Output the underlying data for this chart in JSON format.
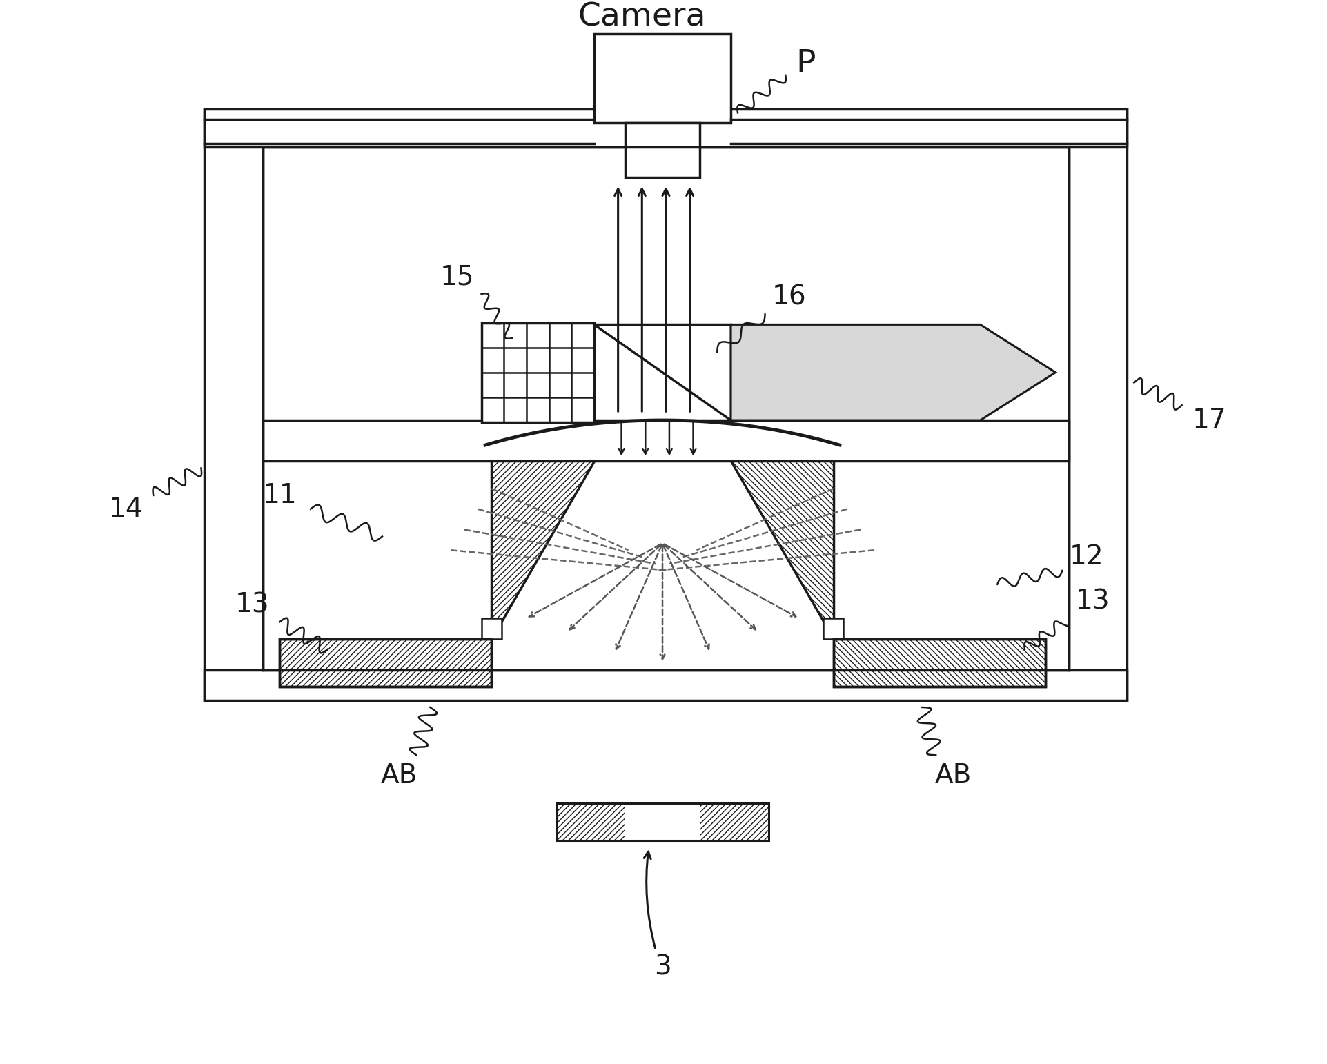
{
  "bg_color": "#ffffff",
  "line_color": "#1a1a1a",
  "figsize": [
    19.23,
    15.42
  ],
  "dpi": 100,
  "labels": {
    "camera": "Camera",
    "P": "P",
    "14": "14",
    "15": "15",
    "16": "16",
    "17": "17",
    "11": "11",
    "12": "12",
    "13_left": "13",
    "13_right": "13",
    "AB_left": "AB",
    "AB_right": "AB",
    "3": "3"
  }
}
